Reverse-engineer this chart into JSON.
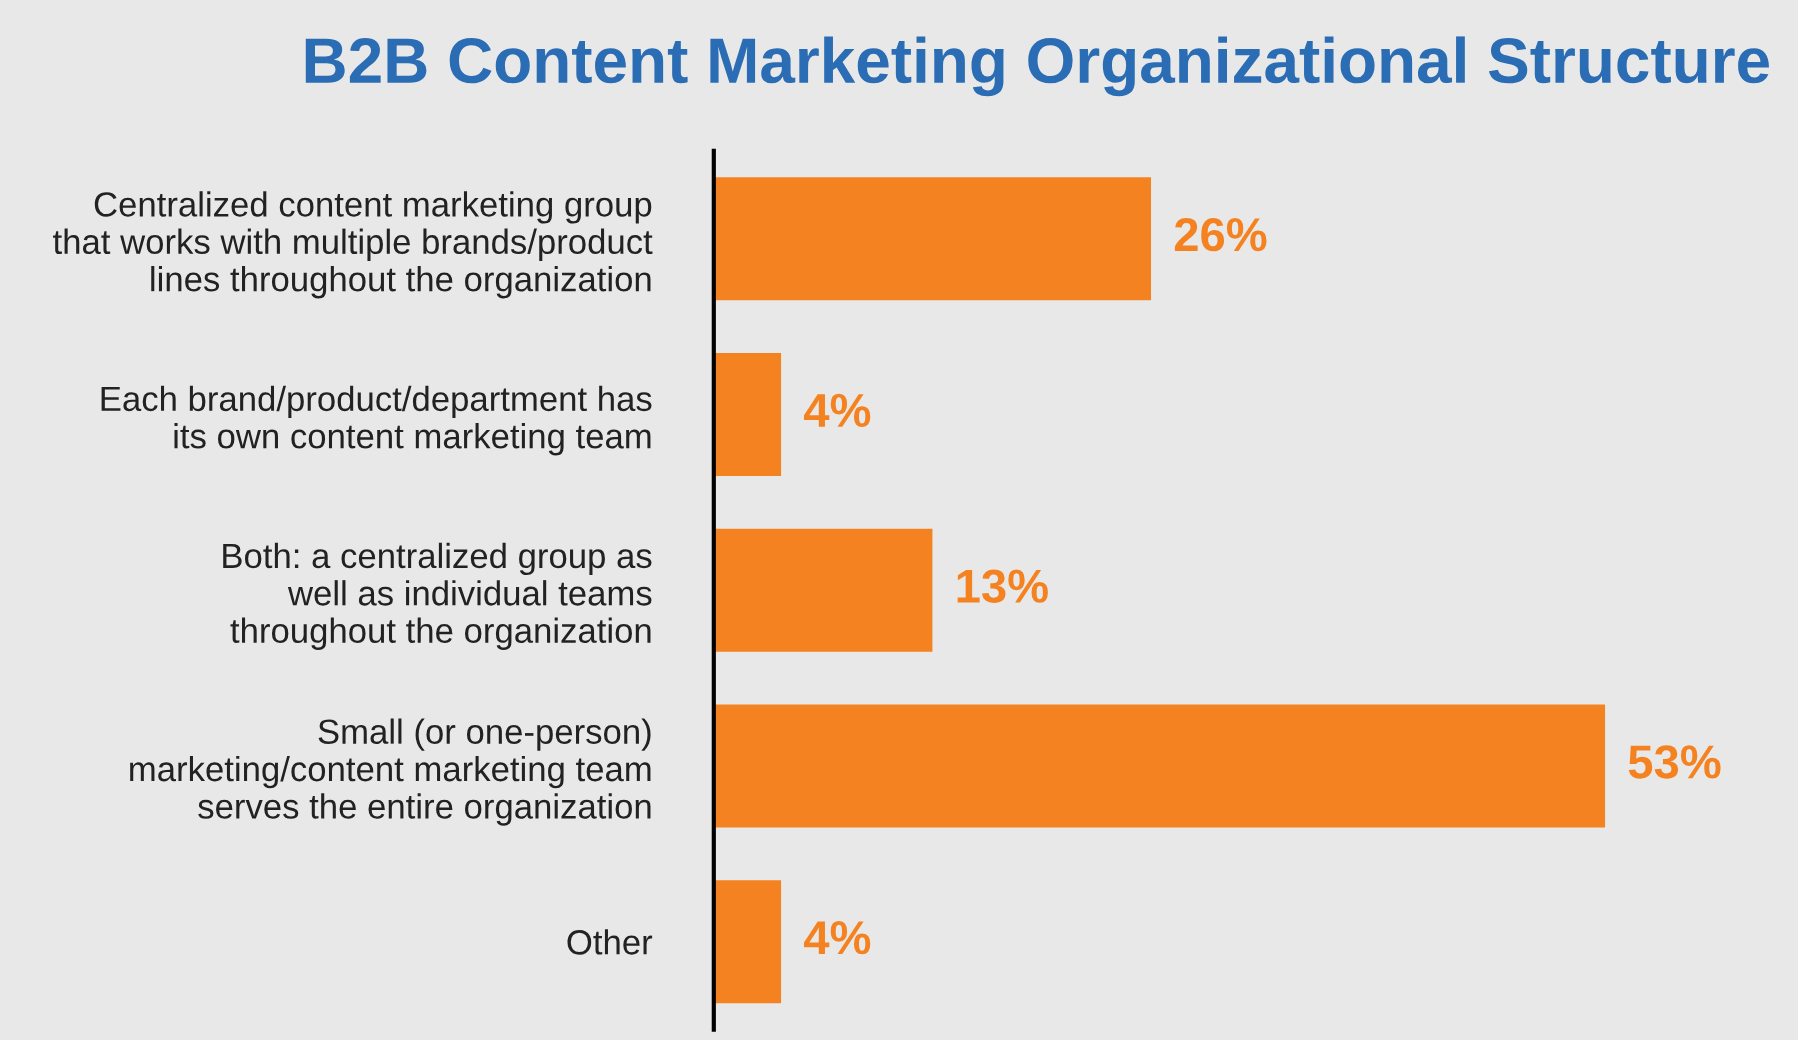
{
  "chart_data": {
    "type": "bar",
    "orientation": "horizontal",
    "title": "B2B Content Marketing Organizational Structure",
    "categories": [
      "Centralized content marketing group\nthat works with multiple brands/product\nlines throughout the organization",
      "Each brand/product/department has\nits own content marketing team",
      "Both: a centralized group as\nwell as individual teams\nthroughout the organization",
      "Small (or one-person)\nmarketing/content marketing team\nserves the entire organization",
      "Other"
    ],
    "values": [
      26,
      4,
      13,
      53,
      4
    ],
    "value_labels": [
      "26%",
      "4%",
      "13%",
      "53%",
      "4%"
    ],
    "color": "#f58220",
    "grid": false,
    "legend": false
  }
}
